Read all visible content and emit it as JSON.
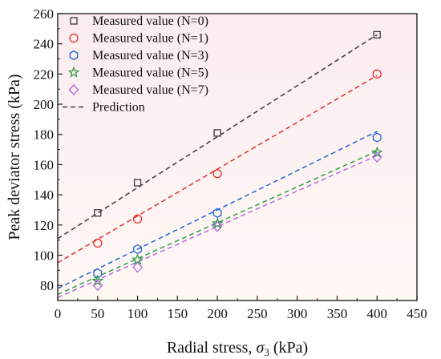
{
  "chart_data": {
    "type": "scatter",
    "xlabel": "Radial stress, σ3 (kPa)",
    "xlabel_parts": {
      "before": "Radial stress, ",
      "symbol": "σ",
      "subscript": "3",
      "after": " (kPa)"
    },
    "ylabel": "Peak deviator stress (kPa)",
    "xlim": [
      0,
      450
    ],
    "ylim": [
      70,
      260
    ],
    "xticks": [
      0,
      50,
      100,
      150,
      200,
      250,
      300,
      350,
      400,
      450
    ],
    "yticks": [
      80,
      100,
      120,
      140,
      160,
      180,
      200,
      220,
      240,
      260
    ],
    "grid": false,
    "legend_position": "top-left",
    "series": [
      {
        "name": "Measured value (N=0)",
        "marker": "square",
        "color": "#3a3a3a",
        "x": [
          50,
          100,
          200,
          400
        ],
        "y": [
          128,
          148,
          181,
          246
        ],
        "fit": {
          "x": [
            0,
            400
          ],
          "y": [
            111,
            246
          ]
        }
      },
      {
        "name": "Measured value (N=1)",
        "marker": "circle",
        "color": "#e0302b",
        "x": [
          50,
          100,
          200,
          400
        ],
        "y": [
          108,
          124,
          154,
          220
        ],
        "fit": {
          "x": [
            0,
            400
          ],
          "y": [
            95,
            219
          ]
        }
      },
      {
        "name": "Measured value (N=3)",
        "marker": "hexagon",
        "color": "#1f66d6",
        "x": [
          50,
          100,
          200,
          400
        ],
        "y": [
          88,
          104,
          128,
          178
        ],
        "fit": {
          "x": [
            0,
            400
          ],
          "y": [
            78,
            182
          ]
        }
      },
      {
        "name": "Measured value (N=5)",
        "marker": "star",
        "color": "#2e9e4a",
        "x": [
          50,
          100,
          200,
          400
        ],
        "y": [
          83,
          97,
          121,
          168
        ],
        "fit": {
          "x": [
            0,
            400
          ],
          "y": [
            74,
            169
          ]
        }
      },
      {
        "name": "Measured value (N=7)",
        "marker": "diamond",
        "color": "#b06be0",
        "x": [
          50,
          100,
          200,
          400
        ],
        "y": [
          80,
          92,
          119,
          165
        ],
        "fit": {
          "x": [
            0,
            400
          ],
          "y": [
            72,
            166
          ]
        }
      }
    ],
    "prediction_legend": "Prediction",
    "prediction_line_style": "dashed"
  }
}
